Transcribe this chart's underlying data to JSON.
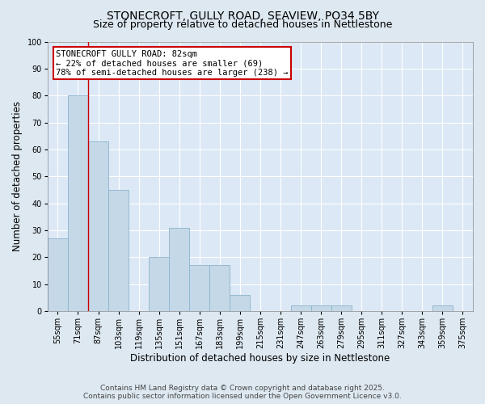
{
  "title": "STONECROFT, GULLY ROAD, SEAVIEW, PO34 5BY",
  "subtitle": "Size of property relative to detached houses in Nettlestone",
  "xlabel": "Distribution of detached houses by size in Nettlestone",
  "ylabel": "Number of detached properties",
  "categories": [
    "55sqm",
    "71sqm",
    "87sqm",
    "103sqm",
    "119sqm",
    "135sqm",
    "151sqm",
    "167sqm",
    "183sqm",
    "199sqm",
    "215sqm",
    "231sqm",
    "247sqm",
    "263sqm",
    "279sqm",
    "295sqm",
    "311sqm",
    "327sqm",
    "343sqm",
    "359sqm",
    "375sqm"
  ],
  "values": [
    27,
    80,
    63,
    45,
    0,
    20,
    31,
    17,
    17,
    6,
    0,
    0,
    2,
    2,
    2,
    0,
    0,
    0,
    0,
    2,
    0
  ],
  "bar_color": "#c5d8e8",
  "bar_edge_color": "#8ab4cc",
  "vline_x_index": 1.5,
  "annotation_text": "STONECROFT GULLY ROAD: 82sqm\n← 22% of detached houses are smaller (69)\n78% of semi-detached houses are larger (238) →",
  "annotation_box_color": "#ffffff",
  "annotation_box_edge_color": "#cc0000",
  "ylim": [
    0,
    100
  ],
  "yticks": [
    0,
    10,
    20,
    30,
    40,
    50,
    60,
    70,
    80,
    90,
    100
  ],
  "vline_color": "#cc0000",
  "footer_line1": "Contains HM Land Registry data © Crown copyright and database right 2025.",
  "footer_line2": "Contains public sector information licensed under the Open Government Licence v3.0.",
  "background_color": "#dde8f0",
  "plot_background": "#dce8f5",
  "grid_color": "#ffffff",
  "title_fontsize": 10,
  "subtitle_fontsize": 9,
  "axis_label_fontsize": 8.5,
  "tick_fontsize": 7,
  "footer_fontsize": 6.5,
  "annotation_fontsize": 7.5
}
